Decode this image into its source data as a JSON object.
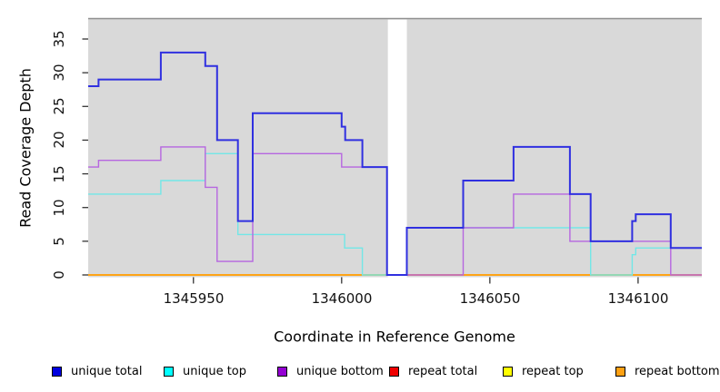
{
  "figure": {
    "x_axis_title": "Coordinate in Reference Genome",
    "y_axis_title": "Read Coverage Depth"
  },
  "colors": {
    "panel_background": "#D9D9D9",
    "panel_top_border": "#8E8E8E",
    "gap_fill": "#FFFFFF",
    "tick": "#333333"
  },
  "legend": {
    "items": [
      {
        "label": "unique total",
        "color": "#0000E0"
      },
      {
        "label": "unique top",
        "color": "#00FFFF"
      },
      {
        "label": "unique bottom",
        "color": "#9400D3"
      },
      {
        "label": "repeat total",
        "color": "#F00000"
      },
      {
        "label": "repeat top",
        "color": "#FFFF00"
      },
      {
        "label": "repeat bottom",
        "color": "#FFA113"
      }
    ]
  },
  "chart_data": {
    "type": "line",
    "step": true,
    "title": "",
    "xlabel": "Coordinate in Reference Genome",
    "ylabel": "Read Coverage Depth",
    "xlim": [
      1345914.5,
      1346121.5
    ],
    "ylim": [
      0,
      35
    ],
    "x_ticks": [
      1345950,
      1346000,
      1346050,
      1346100
    ],
    "y_ticks": [
      0,
      5,
      10,
      15,
      20,
      25,
      30,
      35
    ],
    "grid": false,
    "legend_position": "bottom",
    "no_data_region": [
      1346015.6,
      1346022
    ],
    "series": [
      {
        "name": "repeat total",
        "color": "#F00000",
        "width": 1.4,
        "segments": [
          {
            "points": [
              [
                1345914.5,
                0
              ]
            ],
            "end": 1346015.6
          },
          {
            "points": [
              [
                1346022,
                0
              ]
            ],
            "end": 1346121.5
          }
        ]
      },
      {
        "name": "repeat top",
        "color": "#FFFF00",
        "width": 1.4,
        "segments": [
          {
            "points": [
              [
                1345914.5,
                0
              ]
            ],
            "end": 1346015.6
          },
          {
            "points": [
              [
                1346022,
                0
              ]
            ],
            "end": 1346121.5
          }
        ]
      },
      {
        "name": "repeat bottom",
        "color": "#FFA113",
        "width": 1.8,
        "segments": [
          {
            "points": [
              [
                1345914.5,
                0
              ]
            ],
            "end": 1346015.6
          },
          {
            "points": [
              [
                1346022,
                0
              ]
            ],
            "end": 1346121.5
          }
        ]
      },
      {
        "name": "unique top",
        "color": "#72E7E7",
        "width": 1.4,
        "segments": [
          {
            "points": [
              [
                1345914.5,
                12
              ],
              [
                1345939,
                14
              ],
              [
                1345954,
                18
              ],
              [
                1345965,
                6
              ],
              [
                1346001,
                4
              ],
              [
                1346007,
                0
              ]
            ],
            "end": 1346015.6
          },
          {
            "points": [
              [
                1346022,
                7
              ],
              [
                1346084,
                0
              ],
              [
                1346098,
                3
              ],
              [
                1346099.2,
                4
              ]
            ],
            "end": 1346121.5
          }
        ]
      },
      {
        "name": "unique bottom",
        "color": "#B666E0",
        "width": 1.4,
        "segments": [
          {
            "points": [
              [
                1345914.5,
                16
              ],
              [
                1345918,
                17
              ],
              [
                1345939,
                19
              ],
              [
                1345954,
                13
              ],
              [
                1345958,
                2
              ],
              [
                1345970,
                18
              ],
              [
                1346000,
                16
              ],
              [
                1346015.3,
                0
              ]
            ],
            "end": 1346015.6
          },
          {
            "points": [
              [
                1346022,
                0
              ],
              [
                1346041,
                7
              ],
              [
                1346058,
                12
              ],
              [
                1346077,
                5
              ],
              [
                1346111,
                0
              ]
            ],
            "end": 1346121.5
          }
        ]
      },
      {
        "name": "unique total",
        "color": "#3030E0",
        "width": 2,
        "segments": [
          {
            "points": [
              [
                1345914.5,
                28
              ],
              [
                1345918,
                29
              ],
              [
                1345939,
                33
              ],
              [
                1345954,
                31
              ],
              [
                1345958,
                20
              ],
              [
                1345965,
                8
              ],
              [
                1345970,
                24
              ],
              [
                1346000,
                22
              ],
              [
                1346001.2,
                20
              ],
              [
                1346007,
                16
              ],
              [
                1346015.3,
                0
              ],
              [
                1346022,
                7
              ],
              [
                1346041,
                14
              ],
              [
                1346058,
                19
              ],
              [
                1346077,
                12
              ],
              [
                1346084,
                5
              ],
              [
                1346098,
                8
              ],
              [
                1346099.2,
                9
              ],
              [
                1346111,
                4
              ]
            ],
            "end": 1346121.5
          }
        ]
      }
    ]
  }
}
